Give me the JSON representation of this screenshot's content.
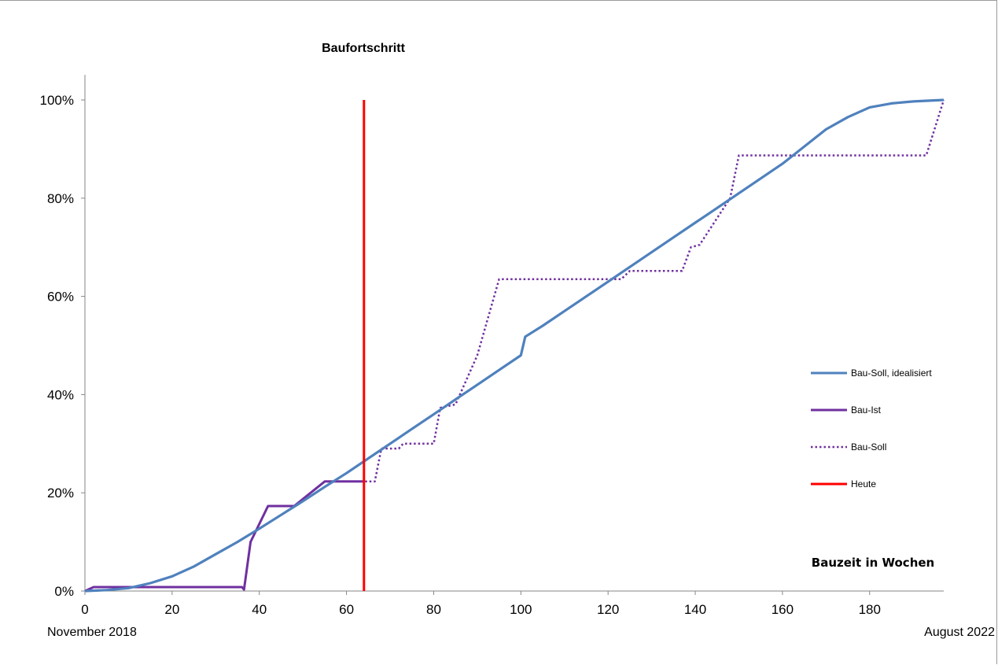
{
  "chart_data": {
    "type": "line",
    "title": "Baufortschritt",
    "xlabel": "Bauzeit in Wochen",
    "ylabel": "",
    "xlim": [
      0,
      197
    ],
    "ylim": [
      0,
      1
    ],
    "x_ticks": [
      0,
      20,
      40,
      60,
      80,
      100,
      120,
      140,
      160,
      180
    ],
    "y_ticks": [
      0,
      0.2,
      0.4,
      0.6,
      0.8,
      1.0
    ],
    "y_tick_labels": [
      "0%",
      "20%",
      "40%",
      "60%",
      "80%",
      "100%"
    ],
    "start_label": "November 2018",
    "end_label": "August 2022",
    "grid": false,
    "legend_position": "right",
    "series": [
      {
        "name": "Bau-Soll, idealisiert",
        "color": "#4f81bd",
        "style": "solid",
        "points": [
          [
            0,
            0
          ],
          [
            5,
            0.002
          ],
          [
            10,
            0.006
          ],
          [
            15,
            0.016
          ],
          [
            20,
            0.03
          ],
          [
            25,
            0.05
          ],
          [
            30,
            0.075
          ],
          [
            35,
            0.1
          ],
          [
            40,
            0.127
          ],
          [
            45,
            0.155
          ],
          [
            50,
            0.183
          ],
          [
            55,
            0.212
          ],
          [
            60,
            0.24
          ],
          [
            65,
            0.27
          ],
          [
            70,
            0.3
          ],
          [
            75,
            0.33
          ],
          [
            80,
            0.36
          ],
          [
            85,
            0.39
          ],
          [
            90,
            0.42
          ],
          [
            95,
            0.45
          ],
          [
            100,
            0.48
          ],
          [
            101,
            0.518
          ],
          [
            105,
            0.54
          ],
          [
            110,
            0.57
          ],
          [
            115,
            0.6
          ],
          [
            120,
            0.63
          ],
          [
            125,
            0.66
          ],
          [
            130,
            0.69
          ],
          [
            135,
            0.72
          ],
          [
            140,
            0.75
          ],
          [
            145,
            0.78
          ],
          [
            150,
            0.81
          ],
          [
            155,
            0.84
          ],
          [
            160,
            0.87
          ],
          [
            165,
            0.905
          ],
          [
            170,
            0.94
          ],
          [
            175,
            0.965
          ],
          [
            180,
            0.985
          ],
          [
            185,
            0.993
          ],
          [
            190,
            0.997
          ],
          [
            197,
            1.0
          ]
        ]
      },
      {
        "name": "Bau-Ist",
        "color": "#7030a0",
        "style": "solid",
        "points": [
          [
            0,
            0
          ],
          [
            2,
            0.008
          ],
          [
            36,
            0.008
          ],
          [
            36.5,
            0.003
          ],
          [
            38,
            0.1
          ],
          [
            42,
            0.173
          ],
          [
            48,
            0.173
          ],
          [
            55,
            0.223
          ],
          [
            64,
            0.223
          ]
        ]
      },
      {
        "name": "Bau-Soll",
        "color": "#7030a0",
        "style": "dotted",
        "points": [
          [
            0,
            0
          ],
          [
            2,
            0.008
          ],
          [
            36,
            0.008
          ],
          [
            36.5,
            0.003
          ],
          [
            38,
            0.1
          ],
          [
            42,
            0.173
          ],
          [
            48,
            0.173
          ],
          [
            55,
            0.223
          ],
          [
            66.5,
            0.223
          ],
          [
            68,
            0.29
          ],
          [
            72,
            0.29
          ],
          [
            73,
            0.3
          ],
          [
            80,
            0.3
          ],
          [
            81.5,
            0.373
          ],
          [
            85,
            0.38
          ],
          [
            90,
            0.48
          ],
          [
            95,
            0.635
          ],
          [
            123,
            0.635
          ],
          [
            125,
            0.652
          ],
          [
            137,
            0.652
          ],
          [
            139,
            0.7
          ],
          [
            141,
            0.705
          ],
          [
            148,
            0.8
          ],
          [
            150,
            0.887
          ],
          [
            193,
            0.887
          ],
          [
            197,
            1.0
          ]
        ]
      },
      {
        "name": "Heute",
        "color": "#ff0000",
        "style": "solid",
        "points": [
          [
            64,
            0
          ],
          [
            64,
            1.0
          ]
        ]
      }
    ]
  }
}
